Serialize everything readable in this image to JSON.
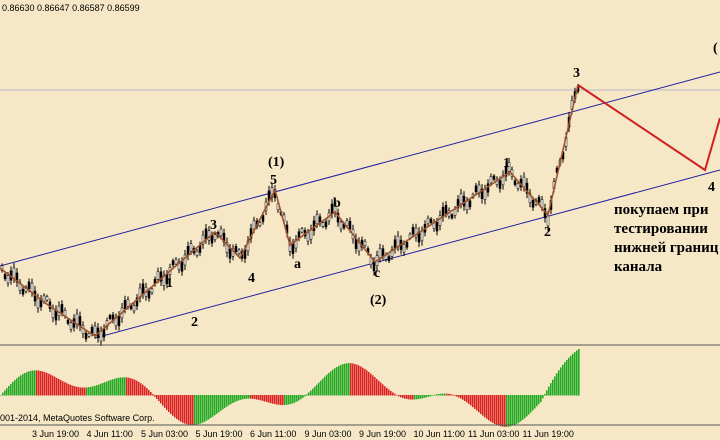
{
  "header": {
    "prices": "0.86630 0.86647 0.86587 0.86599"
  },
  "wave_labels": [
    "(1)",
    "5",
    "3",
    "4",
    "1",
    "2",
    "a",
    "b",
    "c",
    "(2)",
    "1",
    "2",
    "3",
    "4",
    "("
  ],
  "note": [
    "покупаем при",
    "тестировании",
    "нижней границ",
    "канала"
  ],
  "x_labels": [
    "3 Jun 19:00",
    "4 Jun 11:00",
    "5 Jun 03:00",
    "5 Jun 19:00",
    "6 Jun 11:00",
    "9 Jun 03:00",
    "9 Jun 19:00",
    "10 Jun 11:00",
    "11 Jun 03:00",
    "11 Jun 19:00"
  ],
  "copyright": "001-2014, MetaQuotes Software Corp."
}
